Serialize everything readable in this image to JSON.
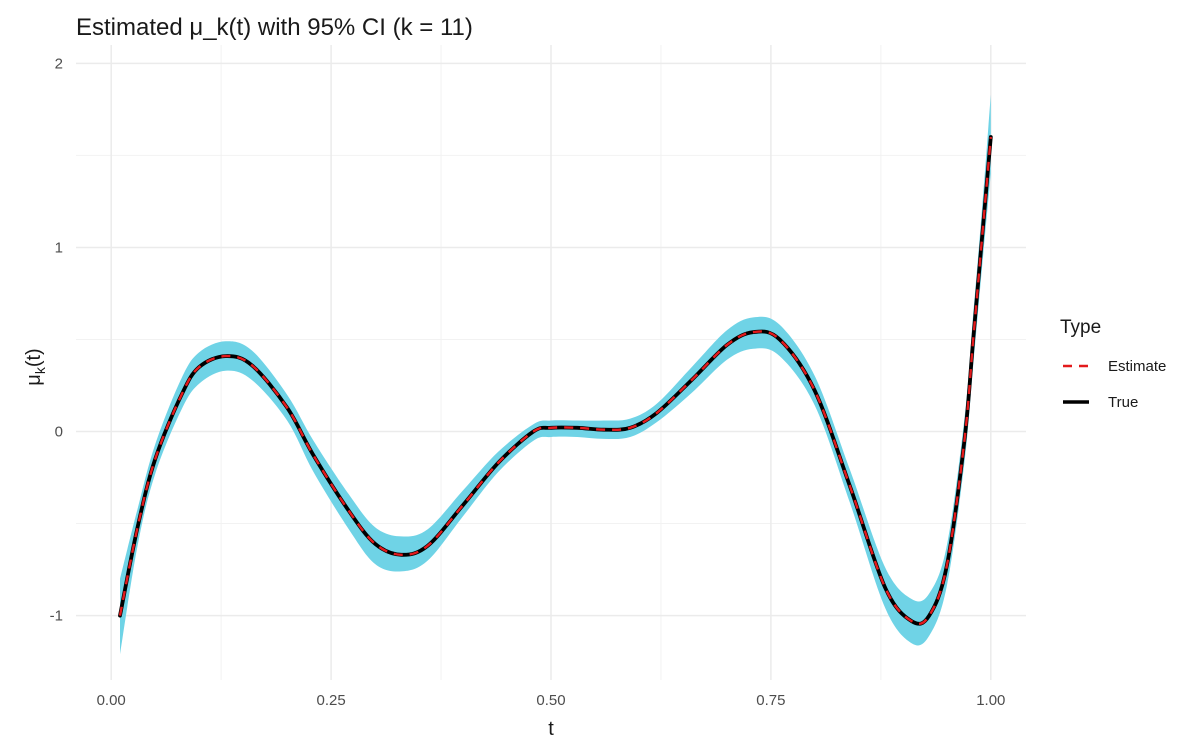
{
  "chart_data": {
    "type": "line",
    "title": "Estimated μ_k(t) with 95% CI (k = 11)",
    "xlabel": "t",
    "ylabel": "μ_k(t)",
    "ylabel_parts": {
      "base": "μ",
      "sub": "k",
      "suffix": "(t)"
    },
    "xlim": [
      -0.04,
      1.04
    ],
    "ylim": [
      -1.35,
      2.1
    ],
    "x_ticks": [
      0.0,
      0.25,
      0.5,
      0.75,
      1.0
    ],
    "x_tick_labels": [
      "0.00",
      "0.25",
      "0.50",
      "0.75",
      "1.00"
    ],
    "y_ticks": [
      -1,
      0,
      1,
      2
    ],
    "y_tick_labels": [
      "-1",
      "0",
      "1",
      "2"
    ],
    "grid": true,
    "legend": {
      "title": "Type",
      "position": "right",
      "entries": [
        {
          "label": "Estimate",
          "color": "#e31a1c",
          "dash": true
        },
        {
          "label": "True",
          "color": "#000000",
          "dash": false
        }
      ]
    },
    "band_color": "#6fd3e6",
    "x": [
      0.01,
      0.03,
      0.05,
      0.08,
      0.1,
      0.13,
      0.16,
      0.2,
      0.23,
      0.27,
      0.3,
      0.33,
      0.36,
      0.4,
      0.44,
      0.48,
      0.5,
      0.53,
      0.56,
      0.59,
      0.62,
      0.66,
      0.7,
      0.73,
      0.76,
      0.8,
      0.84,
      0.88,
      0.91,
      0.93,
      0.95,
      0.97,
      0.98,
      0.99,
      1.0
    ],
    "series": [
      {
        "name": "True",
        "values": [
          -1.0,
          -0.52,
          -0.15,
          0.2,
          0.35,
          0.41,
          0.36,
          0.13,
          -0.13,
          -0.43,
          -0.61,
          -0.67,
          -0.62,
          -0.4,
          -0.17,
          0.0,
          0.02,
          0.02,
          0.01,
          0.02,
          0.1,
          0.28,
          0.47,
          0.54,
          0.5,
          0.22,
          -0.3,
          -0.85,
          -1.03,
          -1.0,
          -0.73,
          -0.05,
          0.5,
          1.05,
          1.6
        ]
      },
      {
        "name": "Estimate",
        "values": [
          -1.0,
          -0.52,
          -0.15,
          0.2,
          0.35,
          0.41,
          0.36,
          0.13,
          -0.13,
          -0.43,
          -0.61,
          -0.67,
          -0.62,
          -0.4,
          -0.17,
          0.0,
          0.02,
          0.02,
          0.01,
          0.02,
          0.1,
          0.28,
          0.47,
          0.54,
          0.5,
          0.22,
          -0.3,
          -0.85,
          -1.03,
          -1.0,
          -0.73,
          -0.05,
          0.5,
          1.05,
          1.6
        ]
      }
    ],
    "ci_lower": [
      -1.21,
      -0.62,
      -0.23,
      0.12,
      0.26,
      0.33,
      0.28,
      0.06,
      -0.22,
      -0.53,
      -0.72,
      -0.76,
      -0.7,
      -0.46,
      -0.22,
      -0.05,
      -0.03,
      -0.03,
      -0.04,
      -0.03,
      0.05,
      0.21,
      0.39,
      0.45,
      0.41,
      0.14,
      -0.39,
      -0.96,
      -1.15,
      -1.11,
      -0.84,
      -0.17,
      0.36,
      0.89,
      1.4
    ],
    "ci_upper": [
      -0.8,
      -0.42,
      -0.07,
      0.29,
      0.43,
      0.49,
      0.44,
      0.2,
      -0.05,
      -0.34,
      -0.52,
      -0.57,
      -0.53,
      -0.32,
      -0.11,
      0.04,
      0.06,
      0.06,
      0.06,
      0.07,
      0.15,
      0.35,
      0.55,
      0.62,
      0.58,
      0.3,
      -0.21,
      -0.74,
      -0.91,
      -0.88,
      -0.62,
      0.07,
      0.64,
      1.21,
      1.83
    ]
  }
}
